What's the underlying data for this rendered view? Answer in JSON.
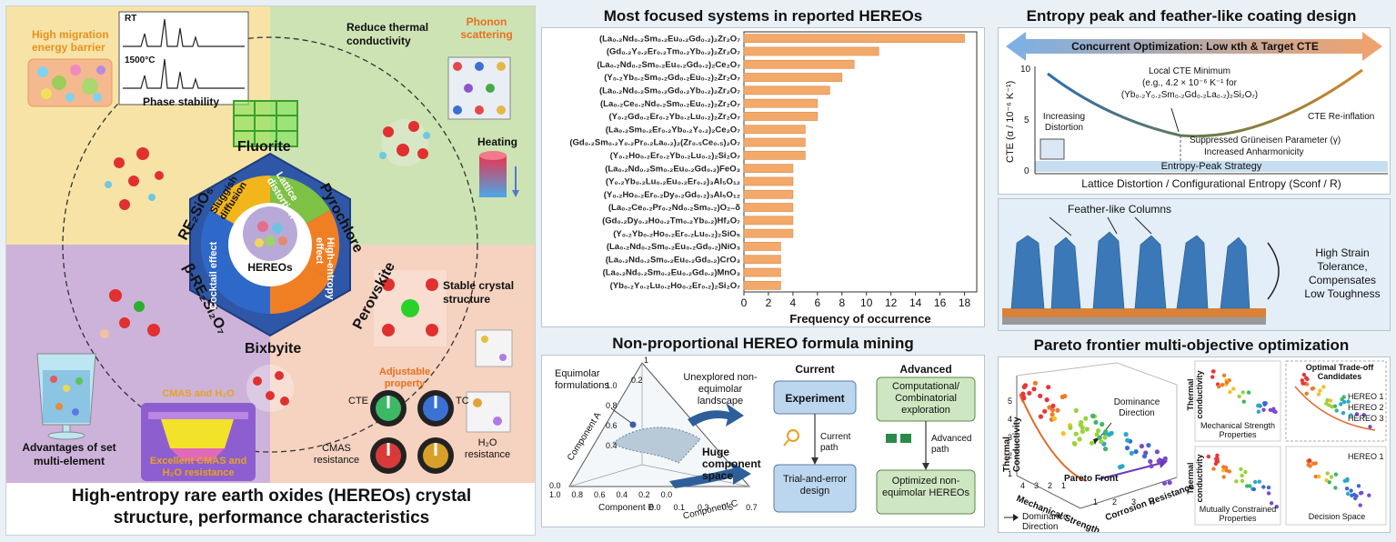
{
  "left": {
    "quadrant_tl": {
      "barrier": "High migration energy barrier",
      "rt": "RT",
      "hot": "1500°C",
      "phase": "Phase stability"
    },
    "quadrant_tr": {
      "reduce": "Reduce thermal conductivity",
      "phonon": "Phonon scattering",
      "heating": "Heating"
    },
    "quadrant_bl": {
      "cmas_h2o": "CMAS and H₂O",
      "excellent": "Excellent CMAS and H₂O resistance",
      "advantages": "Advantages of set multi-element"
    },
    "quadrant_br": {
      "stable": "Stable crystal structure",
      "adjustable": "Adjustable property",
      "cte": "CTE",
      "tc": "TC",
      "cmas": "CMAS resistance",
      "h2o": "H₂O resistance"
    },
    "structures": {
      "fluorite": "Fluorite",
      "pyrochlore": "Pyrochlore",
      "perovskite": "Perovskite",
      "bixbyite": "Bixbyite",
      "re2sio5": "RE₂SiO₅",
      "bre2si2o7": "β-RE₂Si₂O₇"
    },
    "effects": {
      "sluggish": "Sluggish diffusion",
      "lattice": "Lattice distortion",
      "high_entropy": "High-entropy effect",
      "cocktail": "Cocktail effect",
      "center": "HEREOs"
    },
    "caption_line1": "High-entropy rare earth oxides (HEREOs) crystal",
    "caption_line2": "structure, performance characteristics",
    "colors": {
      "tl": "#f8e3a7",
      "tr": "#cde3b4",
      "bl": "#cdb3d9",
      "br": "#f6d2c0",
      "hex": "#2f57a7"
    }
  },
  "bar_panel": {
    "title": "Most focused systems in reported HEREOs",
    "bar_color": "#f3a96a"
  },
  "chart_data": {
    "type": "bar",
    "orientation": "horizontal",
    "title": "Most focused systems in reported HEREOs",
    "xlabel": "Frequency of occurrence",
    "ylabel": "",
    "xlim": [
      0,
      19
    ],
    "xticks": [
      0,
      2,
      4,
      6,
      8,
      10,
      12,
      14,
      16,
      18
    ],
    "categories": [
      "(La₀.₂Nd₀.₂Sm₀.₂Eu₀.₂Gd₀.₂)₂Zr₂O₇",
      "(Gd₀.₂Y₀.₂Er₀.₂Tm₀.₂Yb₀.₂)₂Zr₂O₇",
      "(La₀.₂Nd₀.₂Sm₀.₂Eu₀.₂Gd₀.₂)₂Ce₂O₇",
      "(Y₀.₂Yb₀.₂Sm₀.₂Gd₀.₂Eu₀.₂)₂Zr₂O₇",
      "(La₀.₂Nd₀.₂Sm₀.₂Gd₀.₂Yb₀.₂)₂Zr₂O₇",
      "(La₀.₂Ce₀.₂Nd₀.₂Sm₀.₂Eu₀.₂)₂Zr₂O₇",
      "(Y₀.₂Gd₀.₂Er₀.₂Yb₀.₂Lu₀.₂)₂Zr₂O₇",
      "(La₀.₂Sm₀.₂Er₀.₂Yb₀.₂Y₀.₂)₂Ce₂O₇",
      "(Gd₀.₂Sm₀.₂Y₀.₂Pr₀.₂La₀.₂)₂(Zr₀.₅Ce₀.₅)₂O₇",
      "(Y₀.₂Ho₀.₂Er₀.₂Yb₀.₂Lu₀.₂)₂Si₂O₇",
      "(La₀.₂Nd₀.₂Sm₀.₂Eu₀.₂Gd₀.₂)FeO₃",
      "(Y₀.₂Yb₀.₂Lu₀.₂Eu₀.₂Er₀.₂)₃Al₅O₁₂",
      "(Y₀.₂Ho₀.₂Er₀.₂Dy₀.₂Gd₀.₂)₃Al₅O₁₂",
      "(La₀.₂Ce₀.₂Pr₀.₂Nd₀.₂Sm₀.₂)O₂₋δ",
      "(Gd₀.₂Dy₀.₂Ho₀.₂Tm₀.₂Yb₀.₂)Hf₂O₇",
      "(Y₀.₂Yb₀.₂Ho₀.₂Er₀.₂Lu₀.₂)₂SiO₅",
      "(La₀.₂Nd₀.₂Sm₀.₂Eu₀.₂Gd₀.₂)NiO₃",
      "(La₀.₂Nd₀.₂Sm₀.₂Eu₀.₂Gd₀.₂)CrO₃",
      "(La₀.₂Nd₀.₂Sm₀.₂Eu₀.₂Gd₀.₂)MnO₃",
      "(Yb₀.₂Y₀.₂Lu₀.₂Ho₀.₂Er₀.₂)₂Si₂O₇"
    ],
    "values": [
      18,
      11,
      9,
      8,
      7,
      6,
      6,
      5,
      5,
      5,
      4,
      4,
      4,
      4,
      4,
      4,
      3,
      3,
      3,
      3
    ]
  },
  "formula_panel": {
    "title": "Non-proportional HEREO formula mining",
    "equimolar": "Equimolar formulations",
    "unexplored": "Unexplored non-equimolar landscape",
    "huge": "Huge component space",
    "comp_a": "Component A",
    "comp_b": "Component B",
    "comp_c": "Component C",
    "ticks_a": [
      "0.2",
      "0.4",
      "0.6",
      "0.8",
      "1.0"
    ],
    "ticks_b": [
      "1.0",
      "0.8",
      "0.6",
      "0.4",
      "0.2",
      "0.0"
    ],
    "ticks_c": [
      "0.0",
      "0.1",
      "0.3",
      "0.5",
      "0.7"
    ],
    "tick_top": "1",
    "tick_left": "0.0",
    "current_head": "Current",
    "advanced_head": "Advanced",
    "experiment": "Experiment",
    "current_path": "Current path",
    "trial": "Trial-and-error design",
    "computational": "Computational/ Combinatorial exploration",
    "advanced_path": "Advanced path",
    "optimized": "Optimized non-equimolar HEREOs"
  },
  "entropy_panel": {
    "title": "Entropy peak and feather-like coating design",
    "concurrent": "Concurrent Optimization: Low κth & Target CTE",
    "ylabel": "CTE (α / 10⁻⁶ K⁻¹)",
    "yticks": [
      "10",
      "5",
      "0"
    ],
    "local_min_1": "Local CTE Minimum",
    "local_min_2": "(e.g., 4.2 × 10⁻⁶ K⁻¹ for",
    "local_min_3": "(Yb₀.₂Y₀.₂Sm₀.₂Gd₀.₂La₀.₂)₂Si₂O₇)",
    "increasing": "Increasing Distortion",
    "reinflation": "CTE Re-inflation",
    "gruneisen": "Suppressed Grüneisen Parameter (γ)",
    "anharmonicity": "Increased Anharmonicity",
    "strategy": "Entropy-Peak Strategy",
    "xlabel": "Lattice Distortion / Configurational Entropy (Sconf / R)",
    "feather": "Feather-like Columns",
    "strain_1": "High Strain",
    "strain_2": "Tolerance,",
    "strain_3": "Compensates",
    "strain_4": "Low Toughness"
  },
  "pareto_panel": {
    "title": "Pareto frontier multi-objective optimization",
    "tc": "Thermal Conductivity",
    "ms": "Mechanical Strength",
    "cr": "Corrosion Resistance",
    "dominance": "Dominance Direction",
    "pareto_front": "Pareto Front",
    "legend_dominance": "Dominance Direction",
    "ticks_z": [
      "5",
      "4",
      "3",
      "2",
      "1"
    ],
    "ticks_x": [
      "4",
      "3",
      "2",
      "1"
    ],
    "ticks_y": [
      "1",
      "2",
      "3",
      "4"
    ],
    "sub1_y": "Thermal conductivity",
    "sub1_x": "Mechanical Strength Properties",
    "sub2_title": "Optimal Trade-off Candidates",
    "hereo1": "HEREO 1",
    "hereo2": "HEREO 2",
    "hereo3": "HEREO 3",
    "sub3_y": "Thermal conductivity",
    "sub3_x": "Mutually Constrained Properties",
    "sub4_label": "HEREO 1",
    "sub4_x": "Decision Space"
  }
}
